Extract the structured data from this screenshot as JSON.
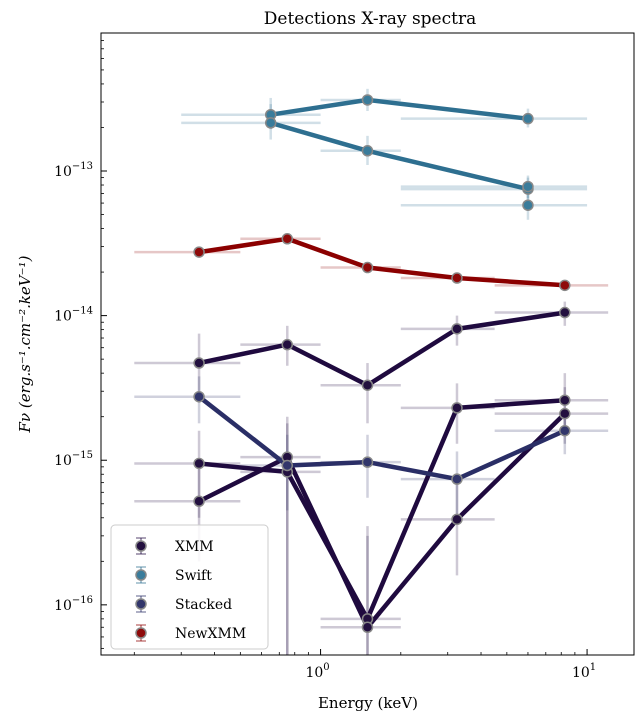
{
  "chart_data": {
    "type": "line",
    "title": "Detections X-ray spectra",
    "xlabel": "Energy (keV)",
    "ylabel": "Fν (erg.s⁻¹.cm⁻².keV⁻¹)",
    "x_scale": "log",
    "y_scale": "log",
    "xlim": [
      0.15,
      15
    ],
    "ylim": [
      4.5e-17,
      9e-13
    ],
    "x_ticks": [
      {
        "value": 1,
        "base": "10",
        "exp": "0"
      },
      {
        "value": 10,
        "base": "10",
        "exp": "1"
      }
    ],
    "y_ticks": [
      {
        "value": 1e-16,
        "base": "10",
        "exp": "−16"
      },
      {
        "value": 1e-15,
        "base": "10",
        "exp": "−15"
      },
      {
        "value": 1e-14,
        "base": "10",
        "exp": "−14"
      },
      {
        "value": 1e-13,
        "base": "10",
        "exp": "−13"
      }
    ],
    "legend_position": "bottom-left",
    "series": [
      {
        "name": "XMM",
        "color": "#1f0a3f",
        "marker_color": "#23103f",
        "points": [
          {
            "x": 0.35,
            "y": 4.7e-15,
            "xlo": 0.2,
            "xhi": 0.5,
            "ylo": 2.5e-15,
            "yhi": 7.5e-15
          },
          {
            "x": 0.75,
            "y": 6.3e-15,
            "xlo": 0.5,
            "xhi": 1.0,
            "ylo": 4.5e-15,
            "yhi": 8.5e-15
          },
          {
            "x": 1.5,
            "y": 3.3e-15,
            "xlo": 1.0,
            "xhi": 2.0,
            "ylo": 1.8e-15,
            "yhi": 4.7e-15
          },
          {
            "x": 3.25,
            "y": 8.1e-15,
            "xlo": 2.0,
            "xhi": 4.5,
            "ylo": 6.2e-15,
            "yhi": 1e-14
          },
          {
            "x": 8.25,
            "y": 1.05e-14,
            "xlo": 4.5,
            "xhi": 12.0,
            "ylo": 8.5e-15,
            "yhi": 1.25e-14
          }
        ]
      },
      {
        "name": "",
        "color": "#1f0a3f",
        "marker_color": "#23103f",
        "points": [
          {
            "x": 0.35,
            "y": 9.5e-16,
            "xlo": 0.2,
            "xhi": 0.5,
            "ylo": 4e-16,
            "yhi": 1.6e-15
          },
          {
            "x": 0.75,
            "y": 8.3e-16,
            "xlo": 0.5,
            "xhi": 1.0,
            "ylo": 4e-17,
            "yhi": 1.8e-15
          },
          {
            "x": 1.5,
            "y": 8e-17,
            "xlo": 1.0,
            "xhi": 2.0,
            "ylo": 4e-17,
            "yhi": 3.5e-16
          },
          {
            "x": 3.25,
            "y": 2.3e-15,
            "xlo": 2.0,
            "xhi": 4.5,
            "ylo": 1.3e-15,
            "yhi": 3.4e-15
          },
          {
            "x": 8.25,
            "y": 2.6e-15,
            "xlo": 4.5,
            "xhi": 12.0,
            "ylo": 1.6e-15,
            "yhi": 4e-15
          }
        ]
      },
      {
        "name": "",
        "color": "#1f0a3f",
        "marker_color": "#23103f",
        "points": [
          {
            "x": 0.35,
            "y": 5.2e-16,
            "xlo": 0.2,
            "xhi": 0.5,
            "ylo": 2e-16,
            "yhi": 9e-16
          },
          {
            "x": 0.75,
            "y": 1.05e-15,
            "xlo": 0.5,
            "xhi": 1.0,
            "ylo": 4e-17,
            "yhi": 2e-15
          },
          {
            "x": 1.5,
            "y": 7e-17,
            "xlo": 1.0,
            "xhi": 2.0,
            "ylo": 4e-17,
            "yhi": 3e-16
          },
          {
            "x": 3.25,
            "y": 3.9e-16,
            "xlo": 2.0,
            "xhi": 4.5,
            "ylo": 1.6e-16,
            "yhi": 7e-16
          },
          {
            "x": 8.25,
            "y": 2.1e-15,
            "xlo": 4.5,
            "xhi": 12.0,
            "ylo": 1.3e-15,
            "yhi": 3.2e-15
          }
        ]
      },
      {
        "name": "Swift",
        "color": "#2e6f90",
        "marker_color": "#3a7c9b",
        "points": [
          {
            "x": 0.65,
            "y": 2.45e-13,
            "xlo": 0.3,
            "xhi": 1.0,
            "ylo": 1.95e-13,
            "yhi": 3.2e-13
          },
          {
            "x": 1.5,
            "y": 3.1e-13,
            "xlo": 1.0,
            "xhi": 2.0,
            "ylo": 2.6e-13,
            "yhi": 3.7e-13
          },
          {
            "x": 6.0,
            "y": 2.3e-13,
            "xlo": 2.0,
            "xhi": 10.0,
            "ylo": 2e-13,
            "yhi": 2.7e-13
          }
        ]
      },
      {
        "name": "",
        "color": "#2e6f90",
        "marker_color": "#3a7c9b",
        "points": [
          {
            "x": 0.65,
            "y": 2.15e-13,
            "xlo": 0.3,
            "xhi": 1.0,
            "ylo": 1.65e-13,
            "yhi": 2.9e-13
          },
          {
            "x": 1.5,
            "y": 1.38e-13,
            "xlo": 1.0,
            "xhi": 2.0,
            "ylo": 1.1e-13,
            "yhi": 1.75e-13
          },
          {
            "x": 6.0,
            "y": 7.5e-14,
            "xlo": 2.0,
            "xhi": 10.0,
            "ylo": 6.2e-14,
            "yhi": 9e-14
          }
        ]
      },
      {
        "name": "",
        "color": "#2e6f90",
        "marker_color": "#3a7c9b",
        "line": false,
        "points": [
          {
            "x": 6.0,
            "y": 7.8e-14,
            "xlo": 2.0,
            "xhi": 10.0,
            "ylo": 6.5e-14,
            "yhi": 9.3e-14
          },
          {
            "x": 6.0,
            "y": 5.8e-14,
            "xlo": 2.0,
            "xhi": 10.0,
            "ylo": 4.6e-14,
            "yhi": 7e-14
          }
        ]
      },
      {
        "name": "Stacked",
        "color": "#2a2e66",
        "marker_color": "#32366b",
        "points": [
          {
            "x": 0.35,
            "y": 2.75e-15,
            "xlo": 0.2,
            "xhi": 0.5,
            "ylo": 1.8e-15,
            "yhi": 3.8e-15
          },
          {
            "x": 0.75,
            "y": 9.2e-16,
            "xlo": 0.5,
            "xhi": 1.0,
            "ylo": 4.5e-16,
            "yhi": 1.5e-15
          },
          {
            "x": 1.5,
            "y": 9.7e-16,
            "xlo": 1.0,
            "xhi": 2.0,
            "ylo": 5.5e-16,
            "yhi": 1.5e-15
          },
          {
            "x": 3.25,
            "y": 7.4e-16,
            "xlo": 2.0,
            "xhi": 4.5,
            "ylo": 4.2e-16,
            "yhi": 1.15e-15
          },
          {
            "x": 8.25,
            "y": 1.6e-15,
            "xlo": 4.5,
            "xhi": 12.0,
            "ylo": 1.1e-15,
            "yhi": 2.2e-15
          }
        ]
      },
      {
        "name": "NewXMM",
        "color": "#8b0000",
        "marker_color": "#8f0a0a",
        "points": [
          {
            "x": 0.35,
            "y": 2.75e-14,
            "xlo": 0.2,
            "xhi": 0.5,
            "ylo": 2.55e-14,
            "yhi": 2.95e-14
          },
          {
            "x": 0.75,
            "y": 3.4e-14,
            "xlo": 0.5,
            "xhi": 1.0,
            "ylo": 3.15e-14,
            "yhi": 3.65e-14
          },
          {
            "x": 1.5,
            "y": 2.15e-14,
            "xlo": 1.0,
            "xhi": 2.0,
            "ylo": 2e-14,
            "yhi": 2.3e-14
          },
          {
            "x": 3.25,
            "y": 1.82e-14,
            "xlo": 2.0,
            "xhi": 4.5,
            "ylo": 1.7e-14,
            "yhi": 1.95e-14
          },
          {
            "x": 8.25,
            "y": 1.62e-14,
            "xlo": 4.5,
            "xhi": 12.0,
            "ylo": 1.52e-14,
            "yhi": 1.72e-14
          }
        ]
      }
    ]
  }
}
